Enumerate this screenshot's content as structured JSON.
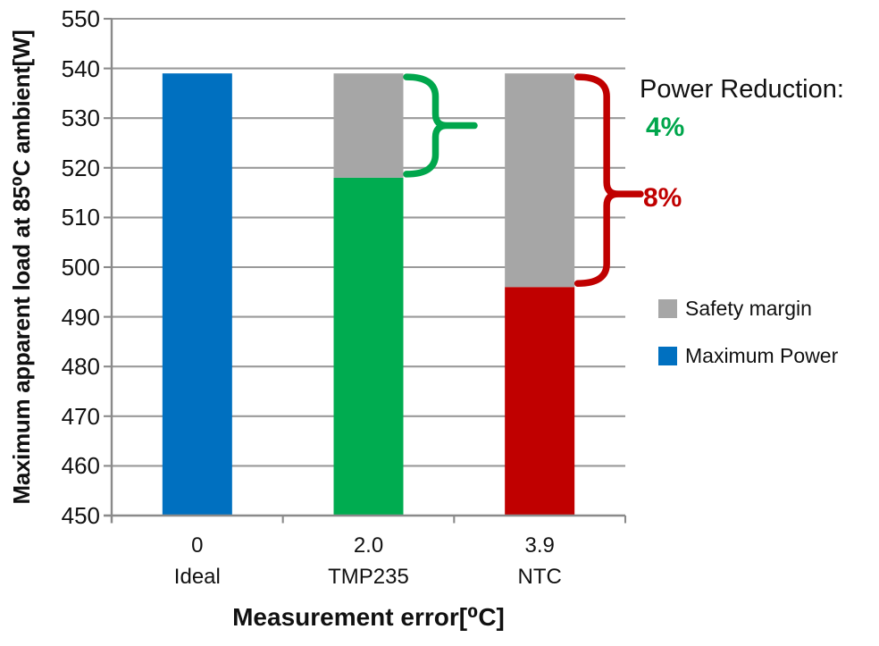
{
  "colors": {
    "blue": "#0070C0",
    "green": "#00AC50",
    "red": "#C00000",
    "gray": "#A6A6A6",
    "annotation_green": "#00A64C",
    "annotation_red": "#C00000",
    "gridline": "#9A9A9A",
    "axis": "#8A8A8A",
    "text": "#111111"
  },
  "chart_data": {
    "type": "bar",
    "stacked": true,
    "categories": [
      "0",
      "2.0",
      "3.9"
    ],
    "category_sublabels": [
      "Ideal",
      "TMP235",
      "NTC"
    ],
    "xlabel": "Measurement error[⁰C]",
    "ylabel": "Maximum apparent load at 85⁰C ambient[W]",
    "ylim": [
      450,
      550
    ],
    "ytick_step": 10,
    "grid": true,
    "series": [
      {
        "name": "Maximum Power",
        "values": [
          539,
          518,
          496
        ],
        "colors": [
          "#0070C0",
          "#00AC50",
          "#C00000"
        ]
      },
      {
        "name": "Safety margin",
        "values": [
          0,
          21,
          43
        ],
        "color": "#A6A6A6"
      }
    ],
    "legend": {
      "position": "right",
      "items": [
        {
          "label": "Safety margin",
          "color": "#A6A6A6"
        },
        {
          "label": "Maximum Power",
          "color": "#0070C0"
        }
      ]
    },
    "annotations": {
      "header": "Power Reduction:",
      "items": [
        {
          "label": "4%",
          "percent": 4,
          "color": "#00A64C",
          "category": "TMP235",
          "from": 539,
          "to": 518
        },
        {
          "label": "8%",
          "percent": 8,
          "color": "#C00000",
          "category": "NTC",
          "from": 539,
          "to": 496
        }
      ]
    }
  }
}
